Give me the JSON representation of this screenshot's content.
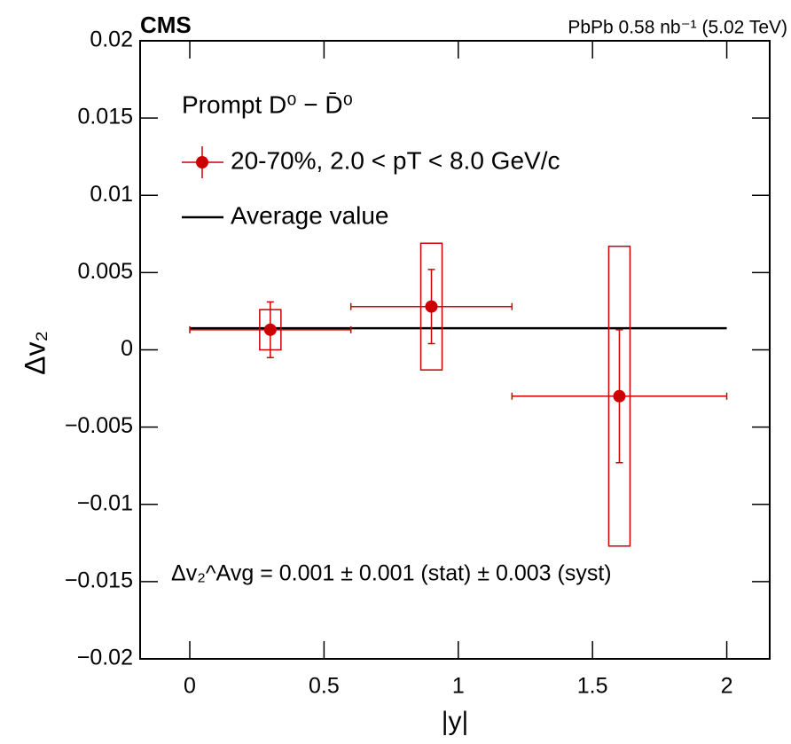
{
  "chart_data": {
    "type": "errorbar",
    "header_left": "CMS",
    "header_right": "PbPb 0.58 nb⁻¹ (5.02 TeV)",
    "x_label": "|y|",
    "y_label": "Δv₂",
    "legend_title": "Prompt D⁰ − D̄⁰",
    "annotation": "Δv₂^Avg = 0.001 ± 0.001 (stat) ± 0.003 (syst)",
    "xlim": [
      -0.185,
      2.16
    ],
    "ylim": [
      -0.02,
      0.02
    ],
    "xticks": [
      0,
      0.5,
      1,
      1.5,
      2
    ],
    "yticks": [
      {
        "value": -0.02,
        "label": "−0.02"
      },
      {
        "value": -0.015,
        "label": "−0.015"
      },
      {
        "value": -0.01,
        "label": "−0.01"
      },
      {
        "value": -0.005,
        "label": "−0.005"
      },
      0,
      0.005,
      0.01,
      0.015,
      0.02
    ],
    "series": [
      {
        "name": "20-70%, 2.0 < pT < 8.0 GeV/c",
        "color": "#cc0000",
        "x": [
          0.3,
          0.9,
          1.6
        ],
        "xerr": [
          0.3,
          0.3,
          0.4
        ],
        "values": [
          0.0013,
          0.0028,
          -0.003
        ],
        "stat_err": [
          0.0018,
          0.0024,
          0.0043
        ],
        "syst_err": [
          0.0013,
          0.0041,
          0.0097
        ]
      }
    ],
    "average": {
      "name": "Average value",
      "color": "#000000",
      "value": 0.0014,
      "x": [
        0,
        2
      ]
    }
  }
}
